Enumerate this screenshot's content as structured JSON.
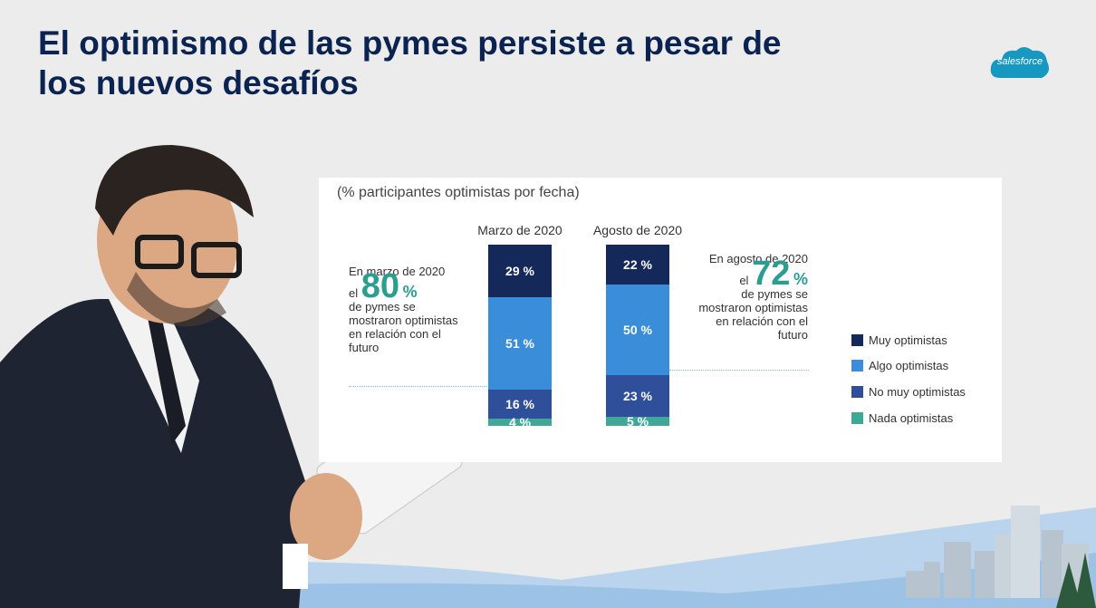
{
  "slide": {
    "title": "El optimismo de las pymes persiste a pesar de los nuevos desafíos",
    "brand": "salesforce"
  },
  "colors": {
    "muy": "#14285a",
    "algo": "#3a8dd8",
    "no_muy": "#2f4f9a",
    "nada": "#3fa898",
    "accent": "#2b9e8f"
  },
  "callouts": {
    "march": {
      "line1": "En marzo de 2020",
      "el": "el",
      "value": "80",
      "pct": "%",
      "line2": "de pymes se",
      "line3": "mostraron optimistas",
      "line4": "en relación con el",
      "line5": "futuro"
    },
    "august": {
      "line1": "En agosto de 2020",
      "el": "el",
      "value": "72",
      "pct": "%",
      "line2": "de pymes se",
      "line3": "mostraron optimistas",
      "line4": "en relación con el",
      "line5": "futuro"
    }
  },
  "chart_data": {
    "type": "bar",
    "stacked": true,
    "title": "(% participantes optimistas por fecha)",
    "categories": [
      "Marzo de 2020",
      "Agosto de 2020"
    ],
    "series": [
      {
        "name": "Muy optimistas",
        "values": [
          29,
          22
        ],
        "labels": [
          "29 %",
          "22 %"
        ]
      },
      {
        "name": "Algo optimistas",
        "values": [
          51,
          50
        ],
        "labels": [
          "51 %",
          "50 %"
        ]
      },
      {
        "name": "No muy optimistas",
        "values": [
          16,
          23
        ],
        "labels": [
          "16 %",
          "23 %"
        ]
      },
      {
        "name": "Nada optimistas",
        "values": [
          4,
          5
        ],
        "labels": [
          "4 %",
          "5 %"
        ]
      }
    ],
    "legend": [
      "Muy optimistas",
      "Algo optimistas",
      "No muy optimistas",
      "Nada optimistas"
    ],
    "ylim": [
      0,
      100
    ],
    "legend_position": "right"
  }
}
